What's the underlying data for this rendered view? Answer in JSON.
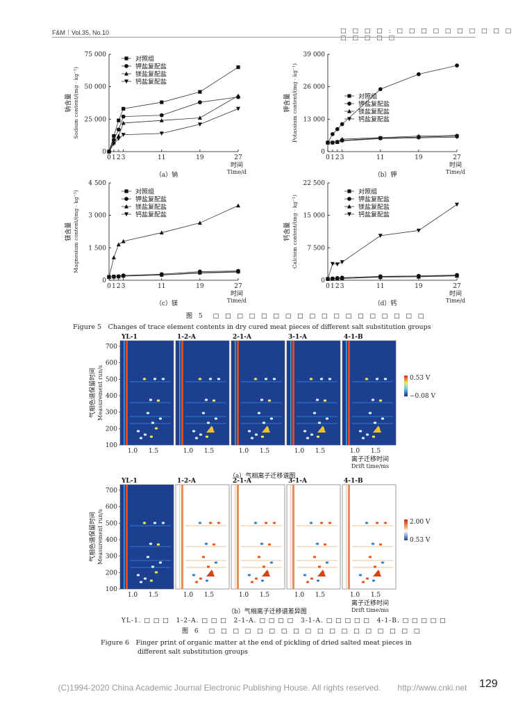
{
  "header": {
    "journal": "F&M｜Vol.35, No.10",
    "section": "□ □ □ □ : □ □ □ □ □ □ □ □ □ □ □ □ □ □ □"
  },
  "legend_items": [
    "对照组",
    "钾盐复配盐",
    "镁盐复配盐",
    "钙盐复配盐"
  ],
  "x_ticks": [
    "0",
    "1",
    "2",
    "3",
    "11",
    "19",
    "27"
  ],
  "x_unit_cn": "时间",
  "x_unit_en": "Time/d",
  "chart_data": [
    {
      "type": "line",
      "id": "a",
      "ylabel_cn": "钠含量",
      "ylabel_en": "Sodium content/(mg · kg⁻¹)",
      "yticks": [
        "0",
        "25 000",
        "50 000",
        "75 000"
      ],
      "ylim": [
        0,
        75000
      ],
      "x": [
        0,
        1,
        2,
        3,
        11,
        19,
        27
      ],
      "series": [
        {
          "name": "对照组",
          "marker": "square",
          "values": [
            0,
            12000,
            24000,
            33000,
            38000,
            46000,
            65000
          ]
        },
        {
          "name": "钾盐复配盐",
          "marker": "circle",
          "values": [
            0,
            9000,
            17000,
            27000,
            28000,
            38000,
            42000
          ]
        },
        {
          "name": "镁盐复配盐",
          "marker": "triangle",
          "values": [
            0,
            7000,
            12000,
            22000,
            24000,
            26000,
            43000
          ]
        },
        {
          "name": "钙盐复配盐",
          "marker": "tri-down",
          "values": [
            0,
            6000,
            10000,
            13000,
            14000,
            21000,
            33000
          ]
        }
      ],
      "caption": "（a）钠"
    },
    {
      "type": "line",
      "id": "b",
      "ylabel_cn": "钾含量",
      "ylabel_en": "Potassium content/(mg · kg⁻¹)",
      "yticks": [
        "0",
        "13 000",
        "26 000",
        "39 000"
      ],
      "ylim": [
        0,
        39000
      ],
      "x": [
        0,
        1,
        2,
        3,
        11,
        19,
        27
      ],
      "series": [
        {
          "name": "对照组",
          "marker": "square",
          "values": [
            3600,
            3600,
            3800,
            4500,
            5400,
            5800,
            6200
          ]
        },
        {
          "name": "钾盐复配盐",
          "marker": "circle",
          "values": [
            3600,
            7000,
            9000,
            11000,
            25000,
            31000,
            34500
          ]
        },
        {
          "name": "镁盐复配盐",
          "marker": "triangle",
          "values": [
            3600,
            3700,
            4000,
            5000,
            5600,
            6200,
            6500
          ]
        },
        {
          "name": "钙盐复配盐",
          "marker": "tri-down",
          "values": [
            3600,
            3500,
            3800,
            4300,
            5200,
            5500,
            5800
          ]
        }
      ],
      "caption": "（b）钾"
    },
    {
      "type": "line",
      "id": "c",
      "ylabel_cn": "镁含量",
      "ylabel_en": "Magnesium content/(mg · kg⁻¹)",
      "yticks": [
        "0",
        "1 500",
        "3 000",
        "4 500"
      ],
      "ylim": [
        0,
        4500
      ],
      "x": [
        0,
        1,
        2,
        3,
        11,
        19,
        27
      ],
      "series": [
        {
          "name": "对照组",
          "marker": "square",
          "values": [
            150,
            160,
            170,
            200,
            250,
            350,
            400
          ]
        },
        {
          "name": "钾盐复配盐",
          "marker": "circle",
          "values": [
            150,
            170,
            180,
            220,
            280,
            400,
            430
          ]
        },
        {
          "name": "镁盐复配盐",
          "marker": "triangle",
          "values": [
            150,
            1050,
            1650,
            1800,
            2200,
            2650,
            3450
          ]
        },
        {
          "name": "钙盐复配盐",
          "marker": "tri-down",
          "values": [
            150,
            160,
            170,
            190,
            240,
            330,
            380
          ]
        }
      ],
      "caption": "（c）镁"
    },
    {
      "type": "line",
      "id": "d",
      "ylabel_cn": "钙含量",
      "ylabel_en": "Calcium content/(mg · kg⁻¹)",
      "yticks": [
        "0",
        "7 500",
        "15 000",
        "22 500"
      ],
      "ylim": [
        0,
        22500
      ],
      "x": [
        0,
        1,
        2,
        3,
        11,
        19,
        27
      ],
      "series": [
        {
          "name": "对照组",
          "marker": "square",
          "values": [
            300,
            350,
            400,
            450,
            800,
            900,
            1100
          ]
        },
        {
          "name": "钾盐复配盐",
          "marker": "circle",
          "values": [
            300,
            400,
            500,
            600,
            900,
            1000,
            1200
          ]
        },
        {
          "name": "镁盐复配盐",
          "marker": "triangle",
          "values": [
            300,
            300,
            350,
            400,
            700,
            800,
            1000
          ]
        },
        {
          "name": "钙盐复配盐",
          "marker": "tri-down",
          "values": [
            300,
            3800,
            3700,
            4200,
            10300,
            11500,
            17500
          ]
        }
      ],
      "caption": "（d）钙"
    }
  ],
  "fig5_cn": "图 5　□ □ □ □ □ □ □ □ □ □ □ □ □ □ □ □ □ □",
  "fig5_en": "Figure 5　Changes of trace element contents in dry cured meat pieces of different salt substitution groups",
  "heatmaps": {
    "panels": [
      "YL-1",
      "1-2-A",
      "2-1-A",
      "3-1-A",
      "4-1-B"
    ],
    "yticks": [
      "700",
      "600",
      "500",
      "400",
      "300",
      "200",
      "100"
    ],
    "xticks": [
      "1.0",
      "1.5"
    ],
    "ylabel_cn": "气相色谱保留时间",
    "ylabel_en": "Measurement run/s",
    "xlabel_cn": "离子迁移时间",
    "xlabel_en": "Drift time/ms",
    "a": {
      "scale_max": "0.53 V",
      "scale_min": "−0.08 V",
      "caption": "（a）气相离子迁移谱图"
    },
    "b": {
      "scale_max": "2.00 V",
      "scale_min": "0.53 V",
      "caption": "（b）气相离子迁移谱差异图"
    }
  },
  "fig6_note": "YL-1. □ □ □　1-2-A. □ □ □　2-1-A. □ □ □ □　3-1-A. □ □ □ □ □　4-1-B. □ □ □ □ □",
  "fig6_cn": "图 6　□ □ □ □ □ □ □ □ □ □ □ □ □ □ □ □ □ □",
  "fig6_en_1": "Figure 6　Finger print of organic matter at the end of pickling of dried salted meat pieces in",
  "fig6_en_2": "different salt substitution groups",
  "page_number": "129",
  "footer": "(C)1994-2020 China Academic Journal Electronic Publishing House. All rights reserved.　　http://www.cnki.net"
}
